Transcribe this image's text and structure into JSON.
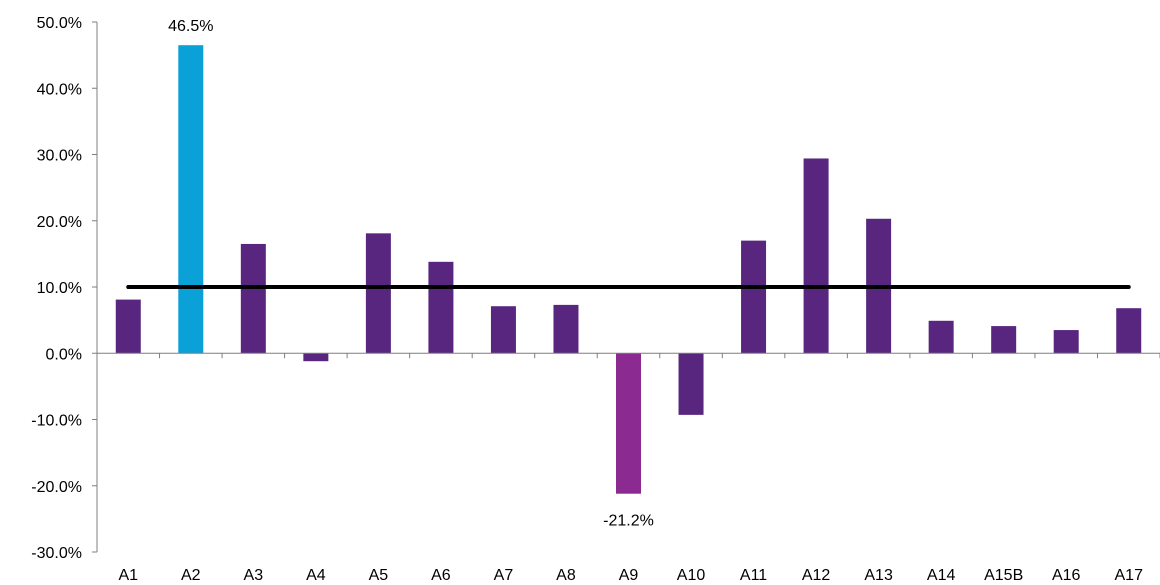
{
  "chart_data": {
    "type": "bar",
    "categories": [
      "A1",
      "A2",
      "A3",
      "A4",
      "A5",
      "A6",
      "A7",
      "A8",
      "A9",
      "A10",
      "A11",
      "A12",
      "A13",
      "A14",
      "A15B",
      "A16",
      "A17"
    ],
    "values": [
      8.1,
      46.5,
      16.5,
      -1.2,
      18.1,
      13.8,
      7.1,
      7.3,
      -21.2,
      -9.3,
      17.0,
      29.4,
      20.3,
      4.9,
      4.1,
      3.5,
      6.8
    ],
    "bar_colors": [
      "#58267e",
      "#0aa0d8",
      "#58267e",
      "#58267e",
      "#58267e",
      "#58267e",
      "#58267e",
      "#58267e",
      "#8b2a91",
      "#58267e",
      "#58267e",
      "#58267e",
      "#58267e",
      "#58267e",
      "#58267e",
      "#58267e",
      "#58267e"
    ],
    "data_labels": [
      {
        "index": 1,
        "text": "46.5%"
      },
      {
        "index": 8,
        "text": "-21.2%"
      }
    ],
    "reference_line": {
      "value": 10.0,
      "color": "#000000"
    },
    "ylim": [
      -30,
      50
    ],
    "ytick_step": 10,
    "ytick_labels": [
      "-30.0%",
      "-20.0%",
      "-10.0%",
      "0.0%",
      "10.0%",
      "20.0%",
      "30.0%",
      "40.0%",
      "50.0%"
    ],
    "axis_color": "#7f7f7f",
    "grid": false,
    "title": "",
    "xlabel": "",
    "ylabel": ""
  }
}
